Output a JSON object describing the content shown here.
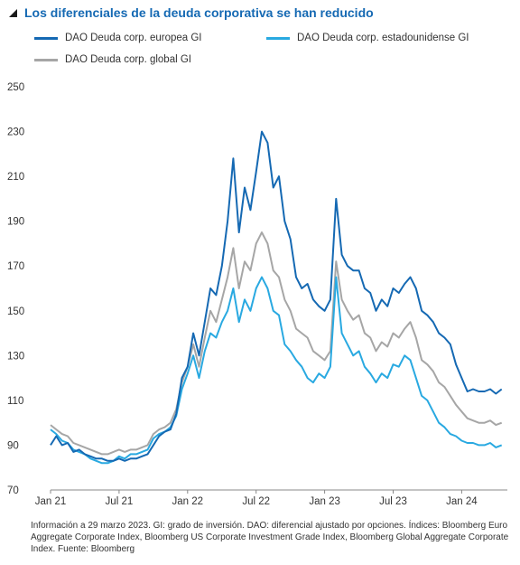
{
  "title": "Los diferenciales de la deuda corporativa se han reducido",
  "footnote": "Información a 29 marzo 2023. GI: grado de inversión. DAO: diferencial ajustado por opciones. Índices: Bloomberg Euro Aggregate Corporate Index, Bloomberg US Corporate Investment Grade Index, Bloomberg Global Aggregate Corporate Index. Fuente: Bloomberg",
  "chart_data": {
    "type": "line",
    "title": "Los diferenciales de la deuda corporativa se han reducido",
    "xlabel": "",
    "ylabel": "",
    "ylim": [
      70,
      250
    ],
    "yticks": [
      70,
      90,
      110,
      130,
      150,
      170,
      190,
      210,
      230,
      250
    ],
    "xticks": [
      "Jan 21",
      "Jul 21",
      "Jan 22",
      "Jul 22",
      "Jan 23",
      "Jul 23",
      "Jan 24"
    ],
    "grid": false,
    "legend": "top",
    "x_unit": "months since Jan 21",
    "series": [
      {
        "name": "DAO Deuda corp. europea GI",
        "color": "#1569b3",
        "x": [
          0,
          0.5,
          1,
          1.5,
          2,
          2.5,
          3,
          3.5,
          4,
          4.5,
          5,
          5.5,
          6,
          6.5,
          7,
          7.5,
          8,
          8.5,
          9,
          9.5,
          10,
          10.5,
          11,
          11.5,
          12,
          12.5,
          13,
          13.5,
          14,
          14.5,
          15,
          15.5,
          16,
          16.5,
          17,
          17.5,
          18,
          18.5,
          19,
          19.5,
          20,
          20.5,
          21,
          21.5,
          22,
          22.5,
          23,
          23.5,
          24,
          24.5,
          25,
          25.5,
          26,
          26.5,
          27,
          27.5,
          28,
          28.5,
          29,
          29.5,
          30,
          30.5,
          31,
          31.5,
          32,
          32.5,
          33,
          33.5,
          34,
          34.5,
          35,
          35.5,
          36,
          36.5,
          37,
          37.5,
          38,
          38.5,
          39,
          39.5
        ],
        "values": [
          90,
          94,
          90,
          91,
          87,
          88,
          86,
          85,
          84,
          84,
          83,
          83,
          84,
          83,
          84,
          84,
          85,
          86,
          90,
          94,
          96,
          97,
          104,
          120,
          125,
          140,
          130,
          145,
          160,
          157,
          170,
          190,
          218,
          185,
          205,
          195,
          212,
          230,
          225,
          205,
          210,
          190,
          182,
          165,
          160,
          162,
          155,
          152,
          150,
          155,
          200,
          175,
          170,
          168,
          168,
          160,
          158,
          150,
          155,
          152,
          160,
          158,
          162,
          165,
          160,
          150,
          148,
          145,
          140,
          138,
          135,
          126,
          120,
          114,
          115,
          114,
          114,
          115,
          113,
          115
        ]
      },
      {
        "name": "DAO Deuda corp. estadounidense GI",
        "color": "#29a9e1",
        "x": [
          0,
          0.5,
          1,
          1.5,
          2,
          2.5,
          3,
          3.5,
          4,
          4.5,
          5,
          5.5,
          6,
          6.5,
          7,
          7.5,
          8,
          8.5,
          9,
          9.5,
          10,
          10.5,
          11,
          11.5,
          12,
          12.5,
          13,
          13.5,
          14,
          14.5,
          15,
          15.5,
          16,
          16.5,
          17,
          17.5,
          18,
          18.5,
          19,
          19.5,
          20,
          20.5,
          21,
          21.5,
          22,
          22.5,
          23,
          23.5,
          24,
          24.5,
          25,
          25.5,
          26,
          26.5,
          27,
          27.5,
          28,
          28.5,
          29,
          29.5,
          30,
          30.5,
          31,
          31.5,
          32,
          32.5,
          33,
          33.5,
          34,
          34.5,
          35,
          35.5,
          36,
          36.5,
          37,
          37.5,
          38,
          38.5,
          39,
          39.5
        ],
        "values": [
          97,
          95,
          92,
          91,
          88,
          87,
          86,
          84,
          83,
          82,
          82,
          83,
          85,
          84,
          86,
          86,
          87,
          88,
          93,
          95,
          96,
          98,
          103,
          115,
          122,
          130,
          120,
          132,
          140,
          138,
          145,
          150,
          160,
          145,
          155,
          150,
          160,
          165,
          160,
          150,
          148,
          135,
          132,
          128,
          125,
          120,
          118,
          122,
          120,
          125,
          165,
          140,
          135,
          130,
          132,
          125,
          122,
          118,
          122,
          120,
          126,
          125,
          130,
          128,
          120,
          112,
          110,
          105,
          100,
          98,
          95,
          94,
          92,
          91,
          91,
          90,
          90,
          91,
          89,
          90
        ]
      },
      {
        "name": "DAO Deuda corp. global GI",
        "color": "#a6a6a6",
        "x": [
          0,
          0.5,
          1,
          1.5,
          2,
          2.5,
          3,
          3.5,
          4,
          4.5,
          5,
          5.5,
          6,
          6.5,
          7,
          7.5,
          8,
          8.5,
          9,
          9.5,
          10,
          10.5,
          11,
          11.5,
          12,
          12.5,
          13,
          13.5,
          14,
          14.5,
          15,
          15.5,
          16,
          16.5,
          17,
          17.5,
          18,
          18.5,
          19,
          19.5,
          20,
          20.5,
          21,
          21.5,
          22,
          22.5,
          23,
          23.5,
          24,
          24.5,
          25,
          25.5,
          26,
          26.5,
          27,
          27.5,
          28,
          28.5,
          29,
          29.5,
          30,
          30.5,
          31,
          31.5,
          32,
          32.5,
          33,
          33.5,
          34,
          34.5,
          35,
          35.5,
          36,
          36.5,
          37,
          37.5,
          38,
          38.5,
          39,
          39.5
        ],
        "values": [
          99,
          97,
          95,
          94,
          91,
          90,
          89,
          88,
          87,
          86,
          86,
          87,
          88,
          87,
          88,
          88,
          89,
          90,
          95,
          97,
          98,
          100,
          106,
          118,
          125,
          135,
          125,
          138,
          150,
          145,
          155,
          165,
          178,
          160,
          172,
          168,
          180,
          185,
          180,
          168,
          165,
          155,
          150,
          142,
          140,
          138,
          132,
          130,
          128,
          132,
          172,
          155,
          150,
          146,
          148,
          140,
          138,
          132,
          136,
          134,
          140,
          138,
          142,
          145,
          138,
          128,
          126,
          123,
          118,
          116,
          112,
          108,
          105,
          102,
          101,
          100,
          100,
          101,
          99,
          100
        ]
      }
    ]
  }
}
